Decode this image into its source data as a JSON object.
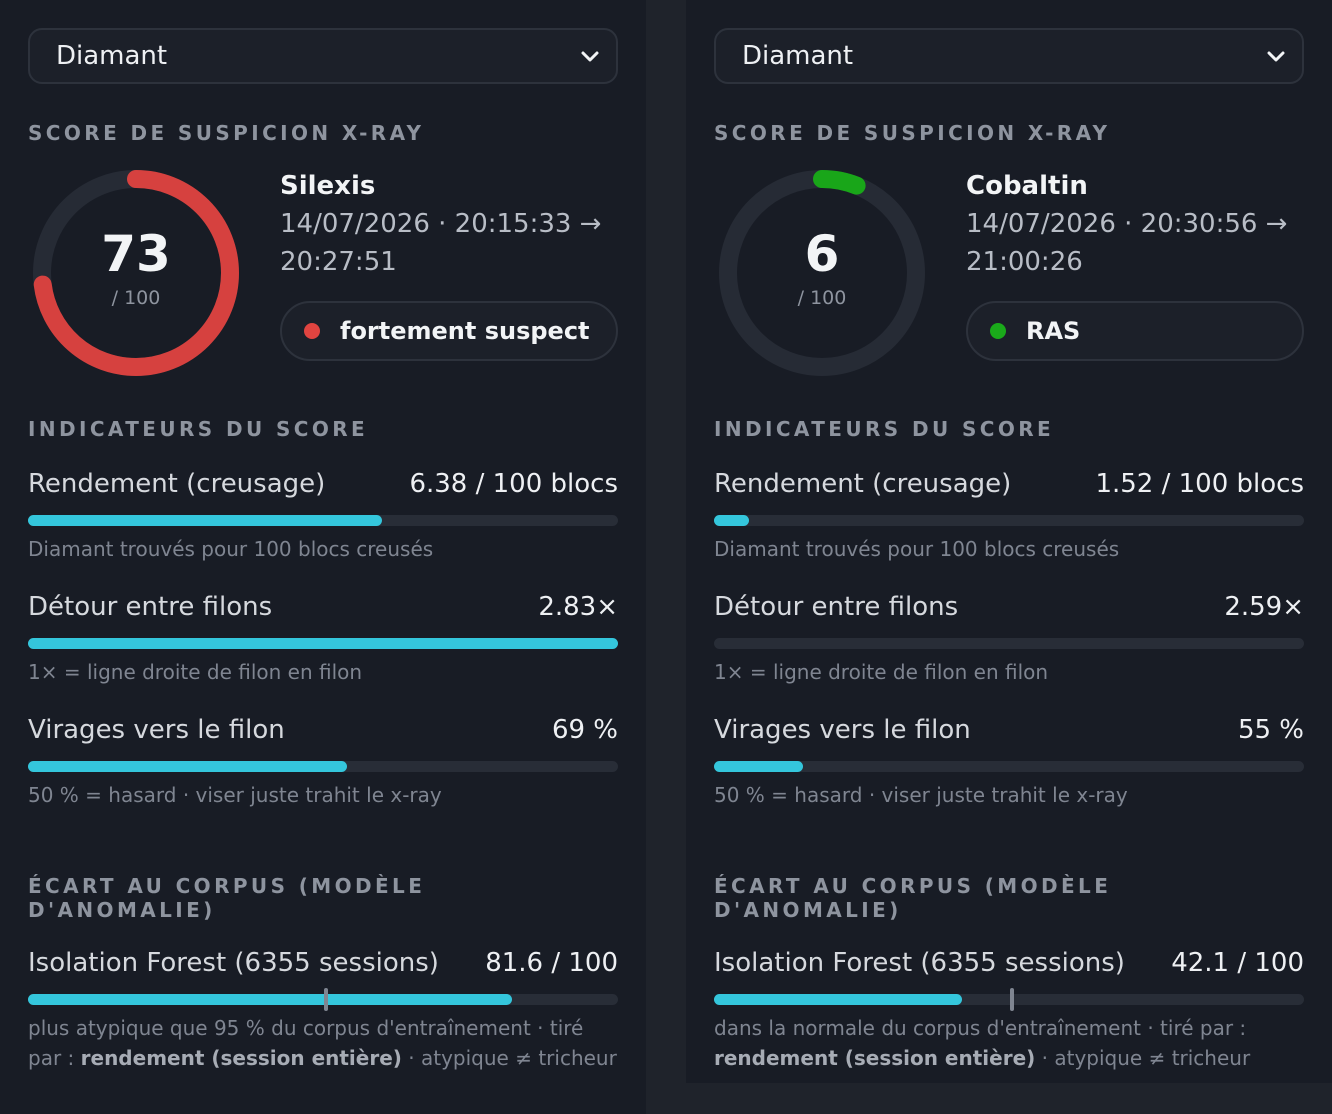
{
  "panels": [
    {
      "ore_select": {
        "value": "Diamant"
      },
      "suspicion_title": "SCORE DE SUSPICION X-RAY",
      "score": {
        "value": 73,
        "value_text": "73",
        "max_text": "/ 100",
        "color": "#d6413f"
      },
      "player": "Silexis",
      "session_line1": "14/07/2026 · 20:15:33 →",
      "session_line2": "20:27:51",
      "verdict": {
        "label": "fortement suspect",
        "dot_color": "#e04440"
      },
      "indicators_title": "INDICATEURS DU SCORE",
      "metrics": [
        {
          "label": "Rendement (creusage)",
          "value": "6.38 / 100 blocs",
          "fill": 0.6,
          "sub": "Diamant trouvés pour 100 blocs creusés"
        },
        {
          "label": "Détour entre filons",
          "value": "2.83×",
          "fill": 1.0,
          "sub": "1× = ligne droite de filon en filon"
        },
        {
          "label": "Virages vers le filon",
          "value": "69 %",
          "fill": 0.54,
          "sub": "50 % = hasard · viser juste trahit le x-ray"
        }
      ],
      "corpus_title": "ÉCART AU CORPUS (MODÈLE D'ANOMALIE)",
      "iforest": {
        "label": "Isolation Forest (6355 sessions)",
        "value": "81.6 / 100",
        "fill": 0.82,
        "marker": 0.505,
        "sub_before": "plus atypique que 95 % du corpus d'entraînement · tiré par : ",
        "sub_bold": "rendement (session entière)",
        "sub_after": " · atypique ≠ tricheur"
      }
    },
    {
      "ore_select": {
        "value": "Diamant"
      },
      "suspicion_title": "SCORE DE SUSPICION X-RAY",
      "score": {
        "value": 6,
        "value_text": "6",
        "max_text": "/ 100",
        "color": "#19a619"
      },
      "player": "Cobaltin",
      "session_line1": "14/07/2026 · 20:30:56 →",
      "session_line2": "21:00:26",
      "verdict": {
        "label": "RAS",
        "dot_color": "#1aa91a"
      },
      "indicators_title": "INDICATEURS DU SCORE",
      "metrics": [
        {
          "label": "Rendement (creusage)",
          "value": "1.52 / 100 blocs",
          "fill": 0.06,
          "sub": "Diamant trouvés pour 100 blocs creusés"
        },
        {
          "label": "Détour entre filons",
          "value": "2.59×",
          "fill": 0.0,
          "sub": "1× = ligne droite de filon en filon"
        },
        {
          "label": "Virages vers le filon",
          "value": "55 %",
          "fill": 0.15,
          "sub": "50 % = hasard · viser juste trahit le x-ray"
        }
      ],
      "corpus_title": "ÉCART AU CORPUS (MODÈLE D'ANOMALIE)",
      "iforest": {
        "label": "Isolation Forest (6355 sessions)",
        "value": "42.1 / 100",
        "fill": 0.42,
        "marker": 0.505,
        "sub_before": "dans la normale du corpus d'entraînement · tiré par : ",
        "sub_bold": "rendement (session entière)",
        "sub_after": " · atypique ≠ tricheur"
      }
    }
  ],
  "icons": {
    "select": "chevron-down-icon",
    "verdict": "status-dot-icon"
  }
}
